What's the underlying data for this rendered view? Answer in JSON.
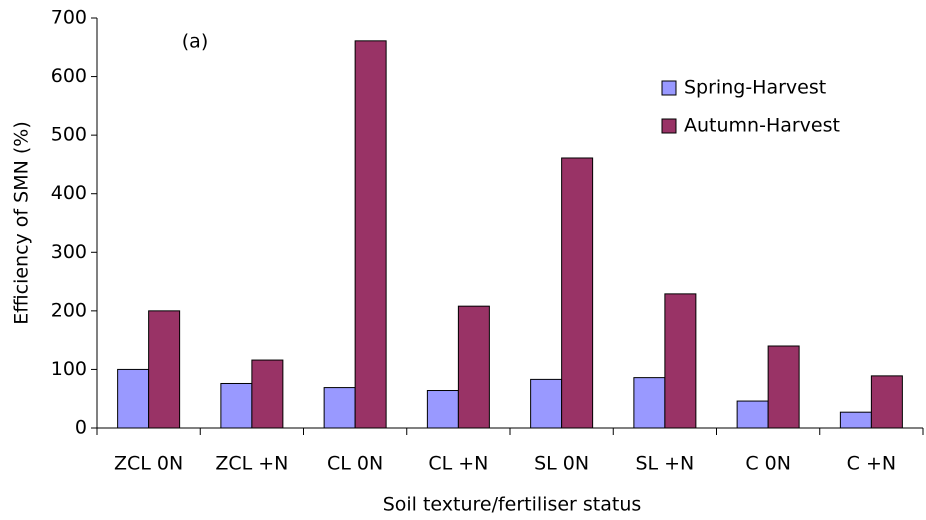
{
  "chart_data": {
    "type": "bar",
    "annotation": "(a)",
    "x_label": "Soil texture/fertiliser status",
    "y_label": "Efficiency of SMN (%)",
    "categories": [
      "ZCL 0N",
      "ZCL +N",
      "CL 0N",
      "CL +N",
      "SL 0N",
      "SL +N",
      "C 0N",
      "C +N"
    ],
    "series": [
      {
        "name": "Spring-Harvest",
        "color": "#9999ff",
        "values": [
          100,
          76,
          69,
          64,
          83,
          86,
          46,
          27
        ]
      },
      {
        "name": "Autumn-Harvest",
        "color": "#993366",
        "values": [
          200,
          116,
          661,
          208,
          461,
          229,
          140,
          89
        ]
      }
    ],
    "ylim": [
      0,
      700
    ],
    "yticks": [
      0,
      100,
      200,
      300,
      400,
      500,
      600,
      700
    ]
  }
}
